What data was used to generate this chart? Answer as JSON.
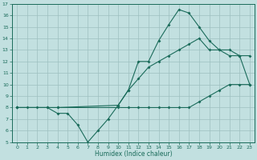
{
  "xlabel": "Humidex (Indice chaleur)",
  "xlim": [
    -0.5,
    23.5
  ],
  "ylim": [
    5,
    17
  ],
  "yticks": [
    5,
    6,
    7,
    8,
    9,
    10,
    11,
    12,
    13,
    14,
    15,
    16,
    17
  ],
  "xticks": [
    0,
    1,
    2,
    3,
    4,
    5,
    6,
    7,
    8,
    9,
    10,
    11,
    12,
    13,
    14,
    15,
    16,
    17,
    18,
    19,
    20,
    21,
    22,
    23
  ],
  "bg_color": "#c2e0e0",
  "line_color": "#1a6b5a",
  "grid_color": "#9dbfbf",
  "curve1_x": [
    0,
    1,
    2,
    3,
    4,
    10,
    11,
    12,
    13,
    14,
    15,
    16,
    17,
    18,
    19,
    20,
    21,
    22,
    23
  ],
  "curve1_y": [
    8,
    8,
    8,
    8,
    8,
    8,
    8,
    8,
    8,
    8,
    8,
    8,
    8,
    8.5,
    9,
    9.5,
    10,
    10,
    10
  ],
  "curve2_x": [
    0,
    3,
    4,
    5,
    6,
    7,
    8,
    9,
    10,
    11,
    12,
    13,
    14,
    15,
    16,
    17,
    18,
    19,
    20,
    21,
    22,
    23
  ],
  "curve2_y": [
    8,
    8,
    7.5,
    7.5,
    6.5,
    5,
    6,
    7,
    8.2,
    9.5,
    12,
    12,
    13.8,
    15.2,
    16.5,
    16.2,
    15,
    13.8,
    13,
    13,
    12.5,
    10
  ],
  "curve3_x": [
    0,
    4,
    10,
    11,
    12,
    13,
    14,
    15,
    16,
    17,
    18,
    19,
    20,
    21,
    22,
    23
  ],
  "curve3_y": [
    8,
    8,
    8.2,
    9.5,
    10.5,
    11.5,
    12,
    12.5,
    13,
    13.5,
    14,
    13,
    13,
    12.5,
    12.5,
    12.5
  ]
}
